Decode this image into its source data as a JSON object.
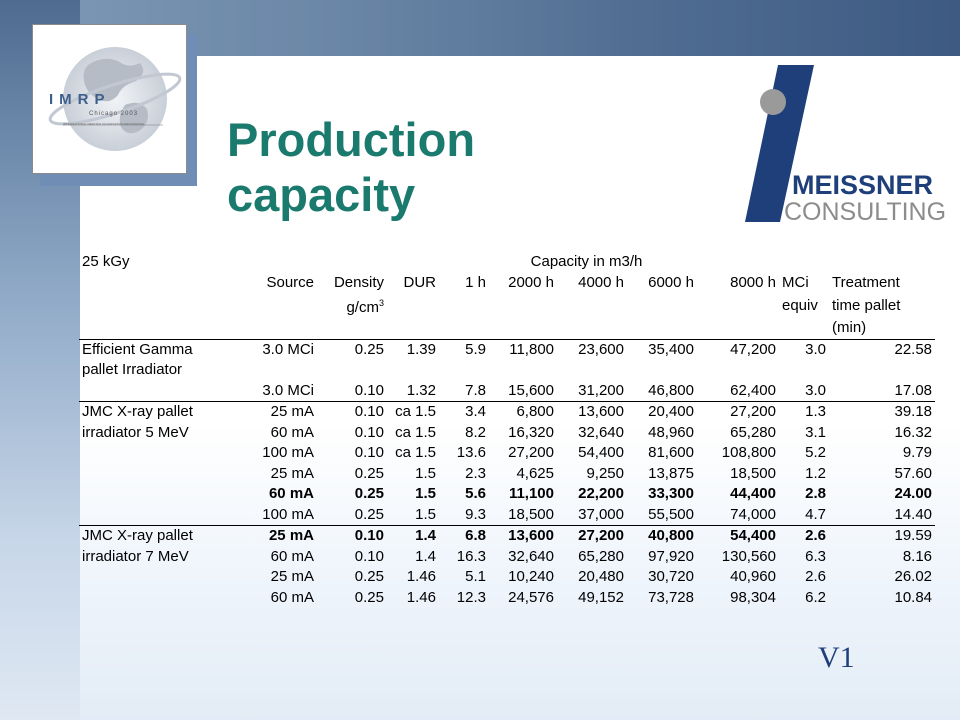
{
  "slide": {
    "title_line1": "Production",
    "title_line2": "capacity",
    "version": "V1"
  },
  "logos": {
    "imrp_text": "IMRP",
    "imrp_subtitle": "Chicago 2003",
    "imrp_fine": "INTERNATIONAL MEETING ON RADIATION PROCESSING",
    "meissner_name": "MEISSNER",
    "meissner_sub": "CONSULTING",
    "colors": {
      "meissner_blue": "#1f3f7a",
      "meissner_grey": "#8c8c8c",
      "title_teal": "#1a7a6e"
    }
  },
  "table": {
    "dose": "25 kGy",
    "capacity_header": "Capacity in m3/h",
    "columns": {
      "source": "Source",
      "density": "Density",
      "density_unit_base": "g/cm",
      "density_unit_exp": "3",
      "dur": "DUR",
      "h1": "1 h",
      "h2000": "2000 h",
      "h4000": "4000 h",
      "h6000": "6000 h",
      "h8000": "8000 h",
      "mci_1": "MCi",
      "mci_2": "equiv",
      "treat_1": "Treatment",
      "treat_2": "time pallet",
      "treat_3": "(min)"
    },
    "groups": [
      {
        "label_1": "Efficient Gamma",
        "label_2": "pallet Irradiator",
        "rows": [
          {
            "source": "3.0 MCi",
            "density": "0.25",
            "dur": "1.39",
            "h1": "5.9",
            "h2000": "11,800",
            "h4000": "23,600",
            "h6000": "35,400",
            "h8000": "47,200",
            "mci": "3.0",
            "time": "22.58"
          },
          {
            "source": "",
            "density": "",
            "dur": "",
            "h1": "",
            "h2000": "",
            "h4000": "",
            "h6000": "",
            "h8000": "",
            "mci": "",
            "time": ""
          },
          {
            "source": "3.0 MCi",
            "density": "0.10",
            "dur": "1.32",
            "h1": "7.8",
            "h2000": "15,600",
            "h4000": "31,200",
            "h6000": "46,800",
            "h8000": "62,400",
            "mci": "3.0",
            "time": "17.08"
          }
        ]
      },
      {
        "label_1": "JMC X-ray pallet",
        "label_2": "irradiator 5 MeV",
        "rows": [
          {
            "source": "25 mA",
            "density": "0.10",
            "dur": "ca 1.5",
            "h1": "3.4",
            "h2000": "6,800",
            "h4000": "13,600",
            "h6000": "20,400",
            "h8000": "27,200",
            "mci": "1.3",
            "time": "39.18"
          },
          {
            "source": "60 mA",
            "density": "0.10",
            "dur": "ca 1.5",
            "h1": "8.2",
            "h2000": "16,320",
            "h4000": "32,640",
            "h6000": "48,960",
            "h8000": "65,280",
            "mci": "3.1",
            "time": "16.32"
          },
          {
            "source": "100 mA",
            "density": "0.10",
            "dur": "ca 1.5",
            "h1": "13.6",
            "h2000": "27,200",
            "h4000": "54,400",
            "h6000": "81,600",
            "h8000": "108,800",
            "mci": "5.2",
            "time": "9.79"
          },
          {
            "source": "25 mA",
            "density": "0.25",
            "dur": "1.5",
            "h1": "2.3",
            "h2000": "4,625",
            "h4000": "9,250",
            "h6000": "13,875",
            "h8000": "18,500",
            "mci": "1.2",
            "time": "57.60"
          },
          {
            "source": "60 mA",
            "density": "0.25",
            "dur": "1.5",
            "h1": "5.6",
            "h2000": "11,100",
            "h4000": "22,200",
            "h6000": "33,300",
            "h8000": "44,400",
            "mci": "2.8",
            "time": "24.00",
            "bold": true
          },
          {
            "source": "100 mA",
            "density": "0.25",
            "dur": "1.5",
            "h1": "9.3",
            "h2000": "18,500",
            "h4000": "37,000",
            "h6000": "55,500",
            "h8000": "74,000",
            "mci": "4.7",
            "time": "14.40"
          }
        ]
      },
      {
        "label_1": "JMC X-ray pallet",
        "label_2": "irradiator 7 MeV",
        "rows": [
          {
            "source": "25 mA",
            "density": "0.10",
            "dur": "1.4",
            "h1": "6.8",
            "h2000": "13,600",
            "h4000": "27,200",
            "h6000": "40,800",
            "h8000": "54,400",
            "mci": "2.6",
            "time": "19.59",
            "bold_except_time": true
          },
          {
            "source": "60 mA",
            "density": "0.10",
            "dur": "1.4",
            "h1": "16.3",
            "h2000": "32,640",
            "h4000": "65,280",
            "h6000": "97,920",
            "h8000": "130,560",
            "mci": "6.3",
            "time": "8.16"
          },
          {
            "source": "25 mA",
            "density": "0.25",
            "dur": "1.46",
            "h1": "5.1",
            "h2000": "10,240",
            "h4000": "20,480",
            "h6000": "30,720",
            "h8000": "40,960",
            "mci": "2.6",
            "time": "26.02"
          },
          {
            "source": "60 mA",
            "density": "0.25",
            "dur": "1.46",
            "h1": "12.3",
            "h2000": "24,576",
            "h4000": "49,152",
            "h6000": "73,728",
            "h8000": "98,304",
            "mci": "6.2",
            "time": "10.84"
          }
        ]
      }
    ]
  }
}
